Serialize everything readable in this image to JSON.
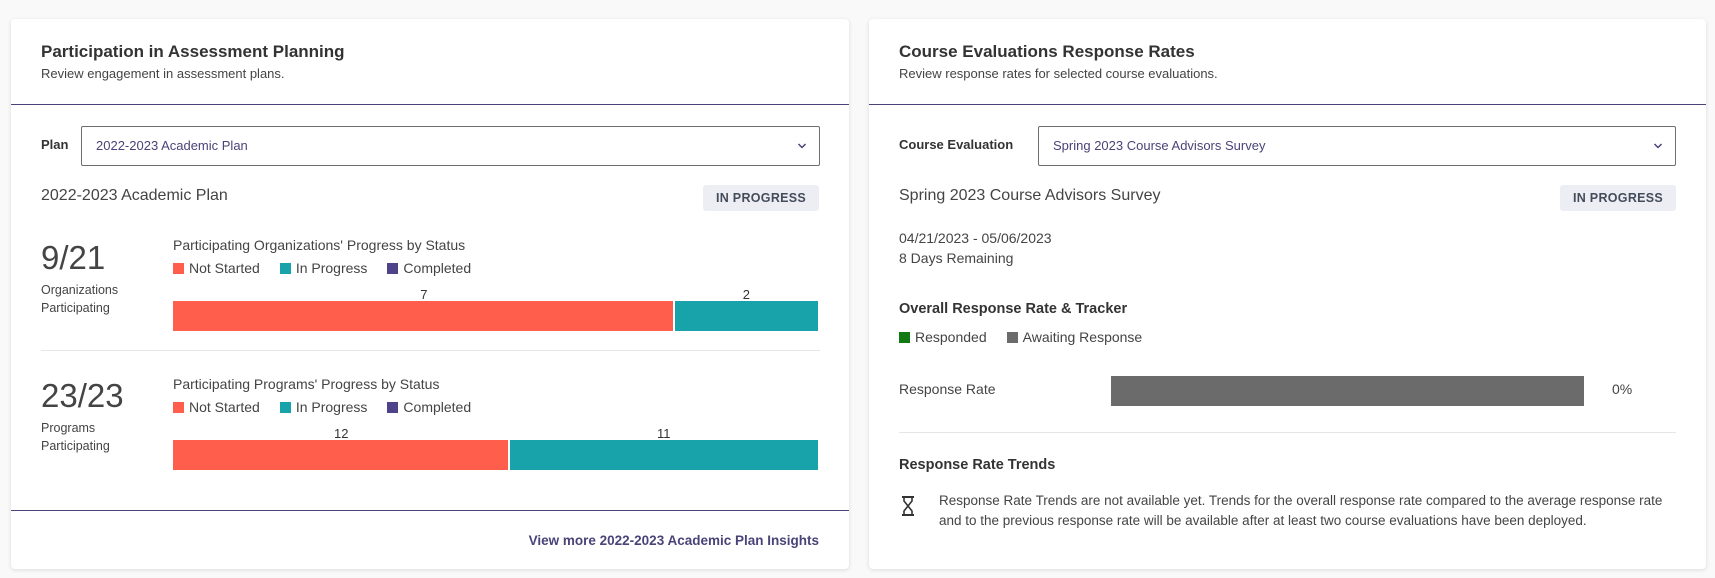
{
  "colors": {
    "not_started": "#ff5e4d",
    "in_progress": "#18a3aa",
    "completed": "#4e4289",
    "responded": "#127a12",
    "awaiting": "#6b6b6b",
    "accent": "#4a4379"
  },
  "left": {
    "title": "Participation in Assessment Planning",
    "subtitle": "Review engagement in assessment plans.",
    "select_label": "Plan",
    "select_value": "2022-2023 Academic Plan",
    "plan_name": "2022-2023 Academic Plan",
    "status_badge": "IN PROGRESS",
    "orgs": {
      "big_number": "9/21",
      "caption": "Organizations Participating",
      "chart_title": "Participating Organizations' Progress by Status"
    },
    "programs": {
      "big_number": "23/23",
      "caption": "Programs Participating",
      "chart_title": "Participating Programs' Progress by Status"
    },
    "legend": [
      "Not Started",
      "In Progress",
      "Completed"
    ],
    "footer_link": "View more 2022-2023 Academic Plan Insights"
  },
  "right": {
    "title": "Course Evaluations Response Rates",
    "subtitle": "Review response rates for selected course evaluations.",
    "select_label": "Course Evaluation",
    "select_value": "Spring 2023 Course Advisors Survey",
    "eval_name": "Spring 2023 Course Advisors Survey",
    "status_badge": "IN PROGRESS",
    "date_range": "04/21/2023 - 05/06/2023",
    "days_remaining": "8 Days Remaining",
    "tracker_title": "Overall Response Rate & Tracker",
    "legend": [
      "Responded",
      "Awaiting Response"
    ],
    "response_rate_label": "Response Rate",
    "response_rate_value": "0%",
    "trends_title": "Response Rate Trends",
    "trends_text": "Response Rate Trends are not available yet. Trends for the overall response rate compared to the average response rate and to the previous response rate will be available after at least two course evaluations have been deployed."
  },
  "chart_data": [
    {
      "type": "bar",
      "orientation": "horizontal-stacked",
      "title": "Participating Organizations' Progress by Status",
      "series": [
        {
          "name": "Not Started",
          "values": [
            7
          ]
        },
        {
          "name": "In Progress",
          "values": [
            2
          ]
        },
        {
          "name": "Completed",
          "values": [
            0
          ]
        }
      ]
    },
    {
      "type": "bar",
      "orientation": "horizontal-stacked",
      "title": "Participating Programs' Progress by Status",
      "series": [
        {
          "name": "Not Started",
          "values": [
            12
          ]
        },
        {
          "name": "In Progress",
          "values": [
            11
          ]
        },
        {
          "name": "Completed",
          "values": [
            0
          ]
        }
      ]
    },
    {
      "type": "bar",
      "orientation": "horizontal-stacked",
      "title": "Overall Response Rate & Tracker",
      "series": [
        {
          "name": "Responded",
          "values": [
            0
          ]
        },
        {
          "name": "Awaiting Response",
          "values": [
            100
          ]
        }
      ]
    }
  ]
}
